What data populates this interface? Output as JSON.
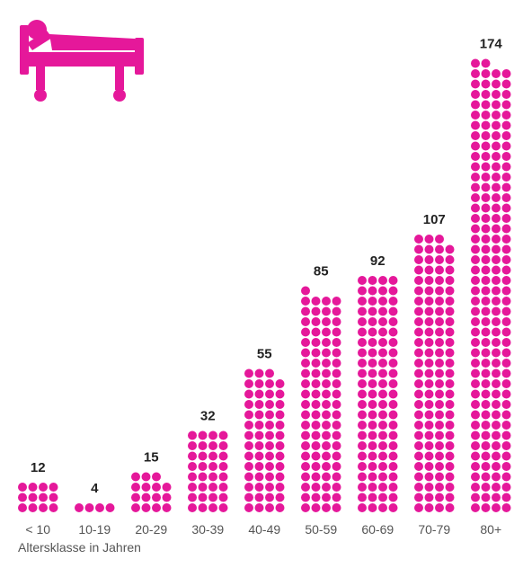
{
  "chart_data": {
    "type": "bar",
    "style": "dot-pictogram",
    "dots_per_row": 4,
    "categories": [
      "< 10",
      "10-19",
      "20-29",
      "30-39",
      "40-49",
      "50-59",
      "60-69",
      "70-79",
      "80+"
    ],
    "values": [
      12,
      4,
      15,
      32,
      55,
      85,
      92,
      107,
      174
    ],
    "value_labels": [
      "12",
      "4",
      "15",
      "32",
      "55",
      "85",
      "92",
      "107",
      "174"
    ],
    "xlabel": "Altersklasse in Jahren",
    "color": "#e5189a",
    "icon": "hospital-bed-icon"
  }
}
